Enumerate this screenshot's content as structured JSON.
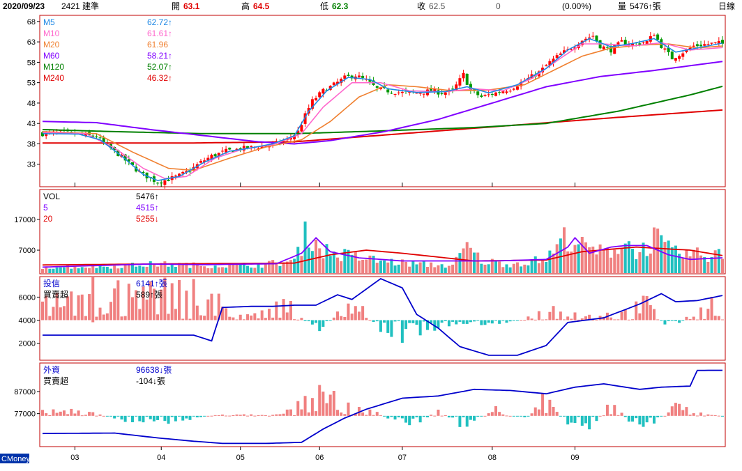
{
  "header": {
    "date": "2020/09/23",
    "stock": "2421 建準",
    "open_label": "開",
    "open": "63.1",
    "high_label": "高",
    "high": "64.5",
    "low_label": "低",
    "low": "62.3",
    "close_label": "收",
    "close": "62.5",
    "change": "0",
    "change_pct": "(0.00%)",
    "volume_label": "量",
    "volume": "5476↑張",
    "period": "日線"
  },
  "footer": {
    "source": "CMoney"
  },
  "colors": {
    "up": "#ff0000",
    "down": "#009900",
    "up_bar": "#f08080",
    "down_bar": "#20c0c0",
    "ma5": "#1e88e5",
    "ma10": "#ff66cc",
    "ma20": "#f08030",
    "ma60": "#8000ff",
    "ma120": "#008000",
    "ma240": "#e00000",
    "net_line": "#0000cc",
    "panel_border": "#c00000"
  },
  "x_labels": [
    "03",
    "04",
    "05",
    "06",
    "07",
    "08",
    "09"
  ],
  "price_panel": {
    "y_ticks": [
      "68",
      "63",
      "58",
      "53",
      "48",
      "43",
      "38",
      "33"
    ],
    "legend": [
      {
        "name": "M5",
        "value": "62.72↑",
        "color": "#1e88e5"
      },
      {
        "name": "M10",
        "value": "61.61↑",
        "color": "#ff66cc"
      },
      {
        "name": "M20",
        "value": "61.96",
        "color": "#f08030"
      },
      {
        "name": "M60",
        "value": "58.21↑",
        "color": "#8000ff"
      },
      {
        "name": "M120",
        "value": "52.07↑",
        "color": "#008000"
      },
      {
        "name": "M240",
        "value": "46.32↑",
        "color": "#e00000"
      }
    ]
  },
  "volume_panel": {
    "y_ticks": [
      "17000",
      "7000"
    ],
    "legend": [
      {
        "name": "VOL",
        "value": "5476↑",
        "color": "#000000"
      },
      {
        "name": "5",
        "value": "4515↑",
        "color": "#8000ff"
      },
      {
        "name": "20",
        "value": "5255↓",
        "color": "#e00000"
      }
    ]
  },
  "trust_panel": {
    "y_ticks": [
      "6000",
      "4000",
      "2000"
    ],
    "legend": [
      {
        "name": "投信",
        "value": "6141↑張",
        "color": "#0000cc"
      },
      {
        "name": "買賣超",
        "value": "589↑張",
        "color": "#000000"
      }
    ]
  },
  "foreign_panel": {
    "y_ticks": [
      "87000",
      "77000"
    ],
    "legend": [
      {
        "name": "外資",
        "value": "96638↓張",
        "color": "#0000cc"
      },
      {
        "name": "買賣超",
        "value": "-104↓張",
        "color": "#000000"
      }
    ]
  },
  "chart_data": {
    "type": "candlestick",
    "x_range": [
      "2020/02/20",
      "2020/09/23"
    ],
    "price_ylim": [
      28,
      69
    ],
    "price_path": [
      [
        0,
        40.5
      ],
      [
        5,
        40.8
      ],
      [
        10,
        40.3
      ],
      [
        15,
        39.8
      ],
      [
        18,
        37.5
      ],
      [
        21,
        35.5
      ],
      [
        24,
        33.2
      ],
      [
        27,
        31
      ],
      [
        30,
        29.5
      ],
      [
        32,
        28.6
      ],
      [
        35,
        29.3
      ],
      [
        38,
        30.2
      ],
      [
        41,
        31.5
      ],
      [
        44,
        33.5
      ],
      [
        47,
        35
      ],
      [
        51,
        36.2
      ],
      [
        55,
        36.8
      ],
      [
        59,
        37.2
      ],
      [
        62,
        37.6
      ],
      [
        65,
        38.1
      ],
      [
        68,
        38.8
      ],
      [
        71,
        41
      ],
      [
        73,
        45
      ],
      [
        75,
        48.5
      ],
      [
        78,
        51
      ],
      [
        81,
        52.5
      ],
      [
        84,
        54.2
      ],
      [
        87,
        54.8
      ],
      [
        90,
        53.5
      ],
      [
        93,
        51.5
      ],
      [
        96,
        51
      ],
      [
        100,
        50.5
      ],
      [
        104,
        50.5
      ],
      [
        108,
        51
      ],
      [
        111,
        50.5
      ],
      [
        114,
        51
      ],
      [
        117,
        55
      ],
      [
        119,
        51
      ],
      [
        122,
        49.5
      ],
      [
        126,
        50.5
      ],
      [
        130,
        51.5
      ],
      [
        134,
        53.5
      ],
      [
        138,
        55.5
      ],
      [
        141,
        58
      ],
      [
        144,
        60
      ],
      [
        147,
        61.5
      ],
      [
        150,
        63.5
      ],
      [
        153,
        64.5
      ],
      [
        155,
        62
      ],
      [
        158,
        61
      ],
      [
        161,
        63
      ],
      [
        164,
        62.5
      ],
      [
        168,
        63
      ],
      [
        170,
        65
      ],
      [
        172,
        62
      ],
      [
        175,
        59
      ],
      [
        178,
        60.5
      ],
      [
        181,
        62
      ],
      [
        185,
        62.5
      ],
      [
        188,
        62.7
      ],
      [
        189,
        62.5
      ]
    ],
    "ma": {
      "M5": [
        [
          0,
          40.5
        ],
        [
          10,
          40.4
        ],
        [
          16,
          39
        ],
        [
          22,
          35
        ],
        [
          28,
          30.5
        ],
        [
          32,
          29
        ],
        [
          38,
          30
        ],
        [
          45,
          33.5
        ],
        [
          52,
          36.2
        ],
        [
          58,
          37
        ],
        [
          64,
          38
        ],
        [
          70,
          40
        ],
        [
          74,
          46
        ],
        [
          79,
          51
        ],
        [
          85,
          54.3
        ],
        [
          91,
          53.8
        ],
        [
          96,
          51.5
        ],
        [
          104,
          50.6
        ],
        [
          112,
          50.8
        ],
        [
          118,
          52
        ],
        [
          124,
          50.5
        ],
        [
          132,
          52.5
        ],
        [
          140,
          56.5
        ],
        [
          146,
          61
        ],
        [
          152,
          63.8
        ],
        [
          158,
          61.8
        ],
        [
          164,
          62.6
        ],
        [
          170,
          63.8
        ],
        [
          176,
          60.5
        ],
        [
          182,
          61.5
        ],
        [
          189,
          62.7
        ]
      ],
      "M10": [
        [
          0,
          40.8
        ],
        [
          12,
          40.5
        ],
        [
          20,
          37
        ],
        [
          28,
          32
        ],
        [
          34,
          29.5
        ],
        [
          40,
          30
        ],
        [
          48,
          34.5
        ],
        [
          56,
          36.8
        ],
        [
          64,
          37.8
        ],
        [
          72,
          40.5
        ],
        [
          78,
          47
        ],
        [
          86,
          53
        ],
        [
          94,
          53
        ],
        [
          102,
          51
        ],
        [
          112,
          50.8
        ],
        [
          120,
          51.5
        ],
        [
          128,
          51
        ],
        [
          136,
          54
        ],
        [
          144,
          59
        ],
        [
          150,
          62.5
        ],
        [
          156,
          62.5
        ],
        [
          164,
          62
        ],
        [
          172,
          62.8
        ],
        [
          180,
          61
        ],
        [
          189,
          61.6
        ]
      ],
      "M20": [
        [
          0,
          41
        ],
        [
          15,
          40.5
        ],
        [
          25,
          36
        ],
        [
          35,
          32
        ],
        [
          42,
          31.5
        ],
        [
          52,
          34.5
        ],
        [
          62,
          37.2
        ],
        [
          72,
          39
        ],
        [
          80,
          43.5
        ],
        [
          88,
          49.5
        ],
        [
          96,
          52.5
        ],
        [
          104,
          52
        ],
        [
          114,
          51
        ],
        [
          124,
          51.2
        ],
        [
          134,
          52.5
        ],
        [
          142,
          56
        ],
        [
          150,
          59.5
        ],
        [
          158,
          61.5
        ],
        [
          166,
          62.2
        ],
        [
          174,
          62.5
        ],
        [
          182,
          61.5
        ],
        [
          189,
          62
        ]
      ],
      "M60": [
        [
          0,
          43.5
        ],
        [
          15,
          43.2
        ],
        [
          30,
          41.5
        ],
        [
          45,
          40
        ],
        [
          60,
          38.5
        ],
        [
          70,
          38
        ],
        [
          80,
          38.8
        ],
        [
          95,
          41
        ],
        [
          110,
          44
        ],
        [
          125,
          48
        ],
        [
          140,
          52
        ],
        [
          155,
          54.5
        ],
        [
          170,
          56
        ],
        [
          189,
          58.2
        ]
      ],
      "M120": [
        [
          0,
          41.5
        ],
        [
          20,
          41
        ],
        [
          45,
          40.5
        ],
        [
          70,
          40.5
        ],
        [
          95,
          41.2
        ],
        [
          120,
          42
        ],
        [
          140,
          43
        ],
        [
          160,
          46
        ],
        [
          180,
          50
        ],
        [
          189,
          52.1
        ]
      ],
      "M240": [
        [
          0,
          38.2
        ],
        [
          40,
          38.2
        ],
        [
          70,
          38.5
        ],
        [
          100,
          40.5
        ],
        [
          130,
          42.5
        ],
        [
          160,
          44.5
        ],
        [
          189,
          46.3
        ]
      ]
    },
    "volume": {
      "ylim": [
        0,
        26000
      ],
      "path": [
        [
          0,
          1500
        ],
        [
          20,
          1800
        ],
        [
          32,
          2500
        ],
        [
          45,
          2000
        ],
        [
          60,
          2200
        ],
        [
          70,
          3500
        ],
        [
          74,
          14000
        ],
        [
          76,
          9000
        ],
        [
          80,
          6000
        ],
        [
          86,
          5000
        ],
        [
          94,
          3500
        ],
        [
          104,
          2500
        ],
        [
          114,
          2000
        ],
        [
          118,
          8000
        ],
        [
          122,
          3500
        ],
        [
          130,
          2500
        ],
        [
          140,
          4000
        ],
        [
          146,
          12000
        ],
        [
          150,
          8000
        ],
        [
          156,
          6000
        ],
        [
          162,
          9500
        ],
        [
          166,
          6000
        ],
        [
          170,
          11000
        ],
        [
          175,
          6000
        ],
        [
          182,
          5500
        ],
        [
          189,
          5476
        ]
      ],
      "ma5": [
        [
          0,
          1500
        ],
        [
          30,
          2500
        ],
        [
          45,
          2300
        ],
        [
          65,
          2600
        ],
        [
          72,
          6000
        ],
        [
          76,
          11000
        ],
        [
          80,
          6500
        ],
        [
          88,
          4500
        ],
        [
          100,
          3500
        ],
        [
          118,
          3500
        ],
        [
          126,
          3500
        ],
        [
          140,
          4000
        ],
        [
          146,
          8000
        ],
        [
          148,
          11000
        ],
        [
          152,
          6000
        ],
        [
          158,
          8000
        ],
        [
          162,
          8500
        ],
        [
          168,
          8500
        ],
        [
          174,
          5500
        ],
        [
          180,
          4000
        ],
        [
          189,
          4515
        ]
      ],
      "ma20": [
        [
          0,
          2200
        ],
        [
          40,
          2600
        ],
        [
          70,
          2800
        ],
        [
          80,
          5500
        ],
        [
          90,
          7000
        ],
        [
          100,
          6000
        ],
        [
          120,
          3500
        ],
        [
          140,
          3800
        ],
        [
          150,
          6500
        ],
        [
          165,
          8000
        ],
        [
          180,
          7000
        ],
        [
          189,
          5255
        ]
      ]
    },
    "trust": {
      "ylim": [
        700,
        7600
      ],
      "net_path": [
        [
          0,
          2700
        ],
        [
          42,
          2700
        ],
        [
          47,
          2200
        ],
        [
          50,
          5100
        ],
        [
          58,
          5200
        ],
        [
          64,
          5200
        ],
        [
          70,
          5300
        ],
        [
          76,
          5300
        ],
        [
          82,
          6200
        ],
        [
          86,
          5800
        ],
        [
          94,
          7600
        ],
        [
          100,
          6800
        ],
        [
          104,
          4500
        ],
        [
          110,
          3300
        ],
        [
          116,
          1700
        ],
        [
          124,
          950
        ],
        [
          132,
          950
        ],
        [
          140,
          1800
        ],
        [
          146,
          3800
        ],
        [
          156,
          4200
        ],
        [
          166,
          5400
        ],
        [
          172,
          6300
        ],
        [
          176,
          5600
        ],
        [
          182,
          5700
        ],
        [
          189,
          6141
        ]
      ],
      "net_buy": [
        [
          46,
          2500
        ],
        [
          52,
          600
        ],
        [
          58,
          300
        ],
        [
          64,
          1500
        ],
        [
          70,
          1000
        ],
        [
          76,
          -1500
        ],
        [
          82,
          500
        ],
        [
          88,
          1300
        ],
        [
          96,
          -1500
        ],
        [
          104,
          -2000
        ],
        [
          110,
          -600
        ],
        [
          116,
          -200
        ],
        [
          124,
          -300
        ],
        [
          132,
          -50
        ],
        [
          144,
          1200
        ],
        [
          150,
          300
        ],
        [
          156,
          500
        ],
        [
          162,
          700
        ],
        [
          168,
          1500
        ],
        [
          174,
          -900
        ],
        [
          180,
          400
        ],
        [
          186,
          1500
        ],
        [
          189,
          589
        ]
      ]
    },
    "foreign": {
      "ylim": [
        63000,
        99000
      ],
      "net_path": [
        [
          0,
          68000
        ],
        [
          20,
          68200
        ],
        [
          32,
          66000
        ],
        [
          42,
          64500
        ],
        [
          50,
          63500
        ],
        [
          62,
          63500
        ],
        [
          72,
          64000
        ],
        [
          78,
          70000
        ],
        [
          84,
          75000
        ],
        [
          90,
          79000
        ],
        [
          100,
          84000
        ],
        [
          110,
          85000
        ],
        [
          120,
          88000
        ],
        [
          130,
          87500
        ],
        [
          140,
          86000
        ],
        [
          148,
          89000
        ],
        [
          156,
          90500
        ],
        [
          166,
          88000
        ],
        [
          172,
          89000
        ],
        [
          180,
          89500
        ],
        [
          182,
          96600
        ],
        [
          189,
          96638
        ]
      ],
      "net_buy": [
        [
          12,
          2000
        ],
        [
          22,
          -2000
        ],
        [
          36,
          -2500
        ],
        [
          48,
          500
        ],
        [
          58,
          500
        ],
        [
          66,
          500
        ],
        [
          72,
          5000
        ],
        [
          76,
          10000
        ],
        [
          82,
          7000
        ],
        [
          90,
          3000
        ],
        [
          98,
          -2000
        ],
        [
          104,
          -3000
        ],
        [
          110,
          2000
        ],
        [
          118,
          -5000
        ],
        [
          126,
          3000
        ],
        [
          134,
          -3000
        ],
        [
          140,
          9000
        ],
        [
          146,
          -5000
        ],
        [
          152,
          -5000
        ],
        [
          158,
          5000
        ],
        [
          164,
          -3000
        ],
        [
          170,
          -5000
        ],
        [
          176,
          5000
        ],
        [
          182,
          1500
        ],
        [
          189,
          -104
        ]
      ]
    }
  }
}
